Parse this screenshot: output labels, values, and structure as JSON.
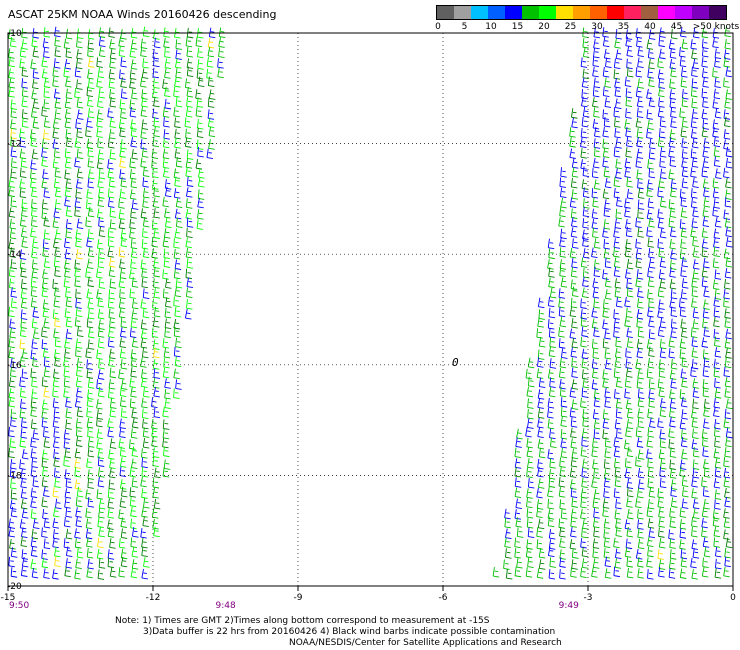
{
  "title": "ASCAT 25KM NOAA Winds 20160426 descending",
  "legend": {
    "colors": [
      "#606060",
      "#a0a0a0",
      "#00c0ff",
      "#0060ff",
      "#0000ff",
      "#00c000",
      "#00ff00",
      "#ffe000",
      "#ffa000",
      "#ff6000",
      "#ff0000",
      "#ff2060",
      "#a06040",
      "#ff00ff",
      "#c000ff",
      "#8000c0",
      "#400060"
    ],
    "labels": [
      "0",
      "5",
      "10",
      "15",
      "20",
      "25",
      "30",
      "35",
      "40",
      "45",
      ">50 knots"
    ]
  },
  "axes": {
    "x_ticks": [
      "-15",
      "-12",
      "-9",
      "-6",
      "-3",
      "0"
    ],
    "y_ticks": [
      "-10",
      "-12",
      "-14",
      "-16",
      "-18",
      "-20"
    ],
    "time_labels": [
      "9:50",
      "9:48",
      "9:49"
    ]
  },
  "marker": "0",
  "notes": {
    "line1": "Note: 1) Times are GMT 2)Times along bottom correspond to measurement at -15S",
    "line2": "3)Data buffer is 22 hrs from 20160426 4) Black wind barbs indicate possible contamination"
  },
  "credit": "NOAA/NESDIS/Center for Satellite Applications and Research",
  "chart_data": {
    "type": "map",
    "title": "ASCAT 25KM NOAA Winds 20160426 descending",
    "x_range": [
      -15,
      0
    ],
    "y_range": [
      -20,
      -10
    ],
    "x_ticks": [
      -15,
      -12,
      -9,
      -6,
      -3,
      0
    ],
    "y_ticks": [
      -10,
      -12,
      -14,
      -16,
      -18,
      -20
    ],
    "grid": true,
    "legend_placement": "top-right",
    "swaths": [
      {
        "pass_time": "9:50",
        "polygon": [
          [
            -15,
            -10
          ],
          [
            -10.5,
            -10
          ],
          [
            -12.1,
            -20
          ],
          [
            -15,
            -20
          ]
        ]
      },
      {
        "pass_time": "9:49",
        "polygon": [
          [
            -3.1,
            -10
          ],
          [
            0,
            -10
          ],
          [
            0,
            -20
          ],
          [
            -5,
            -20
          ]
        ]
      }
    ]
  }
}
